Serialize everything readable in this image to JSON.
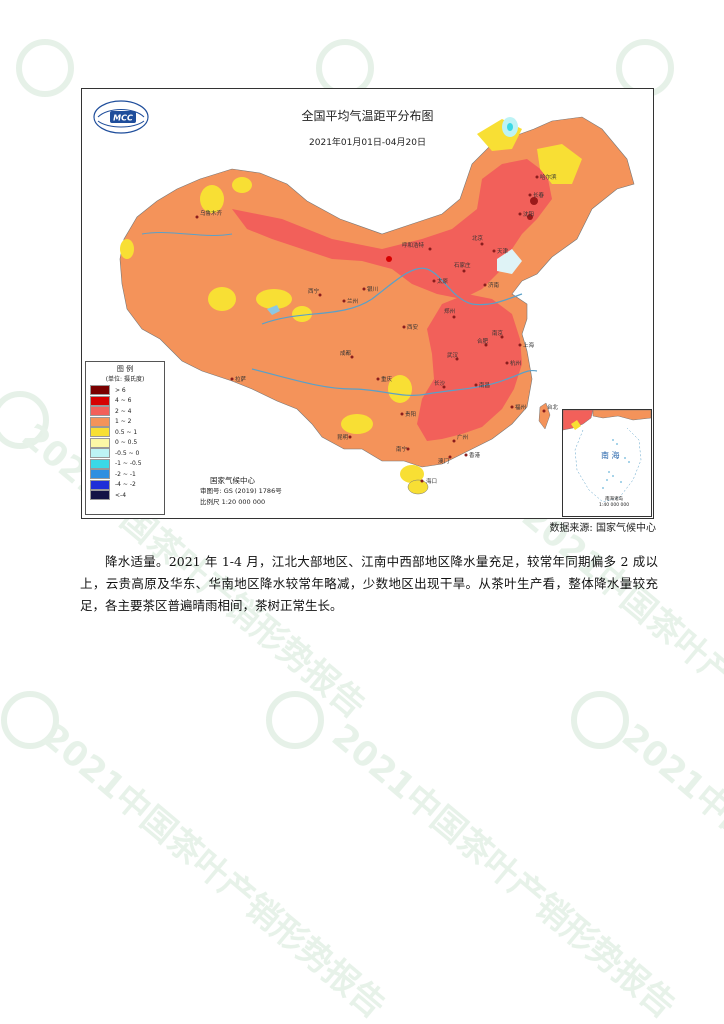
{
  "map": {
    "title": "全国平均气温距平分布图",
    "subtitle": "2021年01月01日-04月20日",
    "logo_text": "MCC",
    "legend": {
      "title": "图 例",
      "unit": "(单位: 摄氏度)",
      "items": [
        {
          "label": "> 6",
          "color": "#7a0000"
        },
        {
          "label": "4 ~ 6",
          "color": "#d60000"
        },
        {
          "label": "2 ~ 4",
          "color": "#f2605a"
        },
        {
          "label": "1 ~ 2",
          "color": "#f4935a"
        },
        {
          "label": "0.5 ~ 1",
          "color": "#f8df34"
        },
        {
          "label": "0 ~ 0.5",
          "color": "#fbf7a6"
        },
        {
          "label": "-0.5 ~ 0",
          "color": "#bdf3f5"
        },
        {
          "label": "-1 ~ -0.5",
          "color": "#3ad9e6"
        },
        {
          "label": "-2 ~ -1",
          "color": "#2f8fe0"
        },
        {
          "label": "-4 ~ -2",
          "color": "#1f2fd8"
        },
        {
          "label": "<-4",
          "color": "#121245"
        }
      ]
    },
    "org": "国家气候中心",
    "map_review_no": "审图号: GS (2019) 1786号",
    "scale": "比例尺 1:20 000 000",
    "inset": {
      "label": "南 海",
      "scale": "南海诸岛\n1:40 000 000"
    },
    "cities": [
      {
        "name": "乌鲁木齐"
      },
      {
        "name": "呼和浩特"
      },
      {
        "name": "哈尔滨"
      },
      {
        "name": "长春"
      },
      {
        "name": "沈阳"
      },
      {
        "name": "北京"
      },
      {
        "name": "天津"
      },
      {
        "name": "银川"
      },
      {
        "name": "太原"
      },
      {
        "name": "石家庄"
      },
      {
        "name": "济南"
      },
      {
        "name": "兰州"
      },
      {
        "name": "西宁"
      },
      {
        "name": "西安"
      },
      {
        "name": "郑州"
      },
      {
        "name": "南京"
      },
      {
        "name": "上海"
      },
      {
        "name": "合肥"
      },
      {
        "name": "武汉"
      },
      {
        "name": "杭州"
      },
      {
        "name": "成都"
      },
      {
        "name": "重庆"
      },
      {
        "name": "长沙"
      },
      {
        "name": "南昌"
      },
      {
        "name": "福州"
      },
      {
        "name": "台北"
      },
      {
        "name": "贵阳"
      },
      {
        "name": "昆明"
      },
      {
        "name": "南宁"
      },
      {
        "name": "广州"
      },
      {
        "name": "香港"
      },
      {
        "name": "澳门"
      },
      {
        "name": "海口"
      },
      {
        "name": "拉萨"
      }
    ]
  },
  "source": "数据来源: 国家气候中心",
  "body": "降水适量。2021 年 1-4 月，江北大部地区、江南中西部地区降水量充足，较常年同期偏多 2 成以上，云贵高原及华东、华南地区降水较常年略减，少数地区出现干旱。从茶叶生产看，整体降水量较充足，各主要茶区普遍晴雨相间，茶树正常生长。",
  "watermark": {
    "text": "2021中国茶叶产销形势报告",
    "color": "#e8f3ea"
  }
}
